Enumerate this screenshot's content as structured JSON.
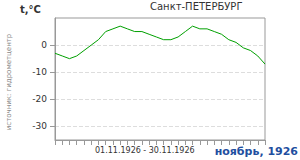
{
  "chart_data": {
    "type": "line",
    "title": "Санкт-ПЕТЕРБУРГ",
    "y_label": "t,°C",
    "x_label": "01.11.1926 - 30.11.1926",
    "source": "источник: гидрометцентр",
    "caption": "ноябрь, 1926",
    "categories": [
      null,
      null,
      null,
      null,
      null,
      null,
      null,
      null,
      null,
      null,
      null,
      null,
      null,
      null,
      null,
      null,
      null,
      null,
      null,
      null,
      null,
      null,
      null,
      null,
      null,
      null,
      null,
      null,
      null,
      null
    ],
    "values": [
      -3,
      -4,
      -5,
      -4,
      -2,
      0,
      2,
      5,
      6,
      7,
      6,
      5,
      5,
      4,
      3,
      2,
      2,
      3,
      5,
      7,
      6,
      6,
      5,
      4,
      2,
      1,
      -1,
      -2,
      -4,
      -7
    ],
    "color": "#00a000",
    "ylim": [
      -35,
      10
    ],
    "yticks": [
      -30,
      -20,
      -10,
      0
    ],
    "grid": true,
    "tick_labels": "y"
  }
}
